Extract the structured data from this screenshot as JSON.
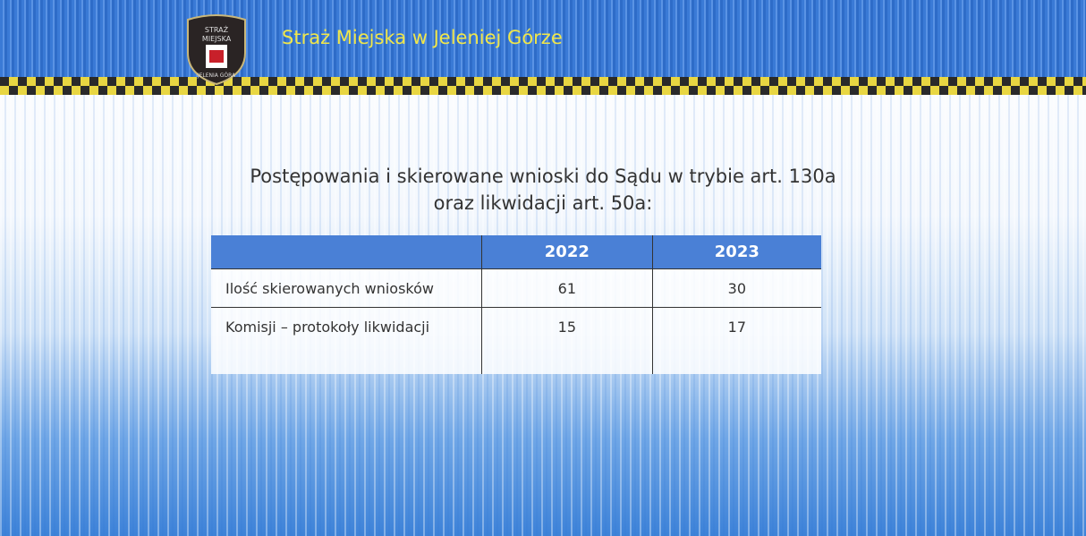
{
  "header": {
    "title": "Straż Miejska w Jeleniej Górze",
    "logo": [
      "STRAŻ",
      "MIEJSKA",
      "JELENIA GÓRA"
    ]
  },
  "slide": {
    "title": [
      "Postępowania i skierowane wnioski do Sądu w trybie art. 130a",
      "oraz likwidacji art. 50a:"
    ]
  },
  "table": {
    "columns": [
      "2022",
      "2023"
    ],
    "rows": [
      [
        "Ilość skierowanych wniosków",
        61,
        30
      ],
      [
        "Komisji – protokoły likwidacji",
        15,
        17
      ]
    ]
  }
}
